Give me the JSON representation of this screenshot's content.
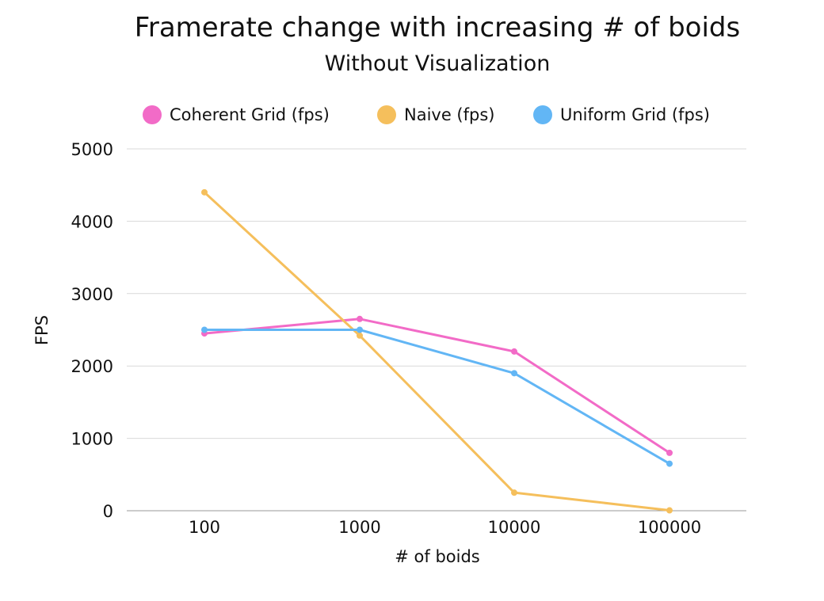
{
  "chart_data": {
    "type": "line",
    "title": "Framerate change with increasing # of boids",
    "subtitle": "Without Visualization",
    "xlabel": "# of boids",
    "ylabel": "FPS",
    "categories": [
      "100",
      "1000",
      "10000",
      "100000"
    ],
    "ylim": [
      0,
      5000
    ],
    "yticks": [
      "0",
      "1000",
      "2000",
      "3000",
      "4000",
      "5000"
    ],
    "grid": true,
    "legend_position": "top",
    "series": [
      {
        "name": "Coherent Grid (fps)",
        "color": "#f26bc7",
        "values": [
          2450,
          2650,
          2200,
          800
        ]
      },
      {
        "name": "Naive (fps)",
        "color": "#f5bf5c",
        "values": [
          4400,
          2420,
          250,
          5
        ]
      },
      {
        "name": "Uniform Grid (fps)",
        "color": "#62b6f5",
        "values": [
          2500,
          2500,
          1900,
          650
        ]
      }
    ]
  }
}
